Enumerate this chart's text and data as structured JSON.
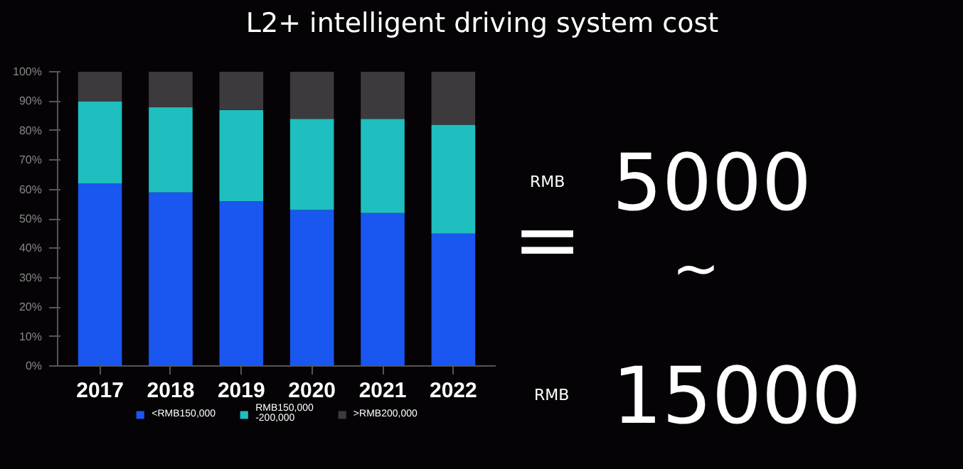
{
  "chart_data": {
    "type": "bar",
    "stacked": true,
    "title": "L2+ intelligent driving system cost",
    "categories": [
      "2017",
      "2018",
      "2019",
      "2020",
      "2021",
      "2022"
    ],
    "series": [
      {
        "name": "<RMB150,000",
        "color": "#1a56f0",
        "values": [
          62,
          59,
          56,
          53,
          52,
          45
        ]
      },
      {
        "name": "RMB150,000\n-200,000",
        "color": "#1fbfbf",
        "values": [
          28,
          29,
          31,
          31,
          32,
          37
        ]
      },
      {
        "name": ">RMB200,000",
        "color": "#3c3a3c",
        "values": [
          10,
          12,
          13,
          16,
          16,
          18
        ]
      }
    ],
    "ylim": [
      0,
      100
    ],
    "yticks": [
      {
        "value": 0,
        "label": "0%"
      },
      {
        "value": 10,
        "label": "10%"
      },
      {
        "value": 20,
        "label": "20%"
      },
      {
        "value": 30,
        "label": "30%"
      },
      {
        "value": 40,
        "label": "40%"
      },
      {
        "value": 50,
        "label": "50%"
      },
      {
        "value": 60,
        "label": "60%"
      },
      {
        "value": 70,
        "label": "70%"
      },
      {
        "value": 80,
        "label": "80%"
      },
      {
        "value": 90,
        "label": "90%"
      },
      {
        "value": 100,
        "label": "100%"
      }
    ],
    "grid": false,
    "legend": "bottom",
    "annotations": [
      "=",
      "RMB",
      "5000",
      "~",
      "RMB",
      "15000"
    ]
  }
}
